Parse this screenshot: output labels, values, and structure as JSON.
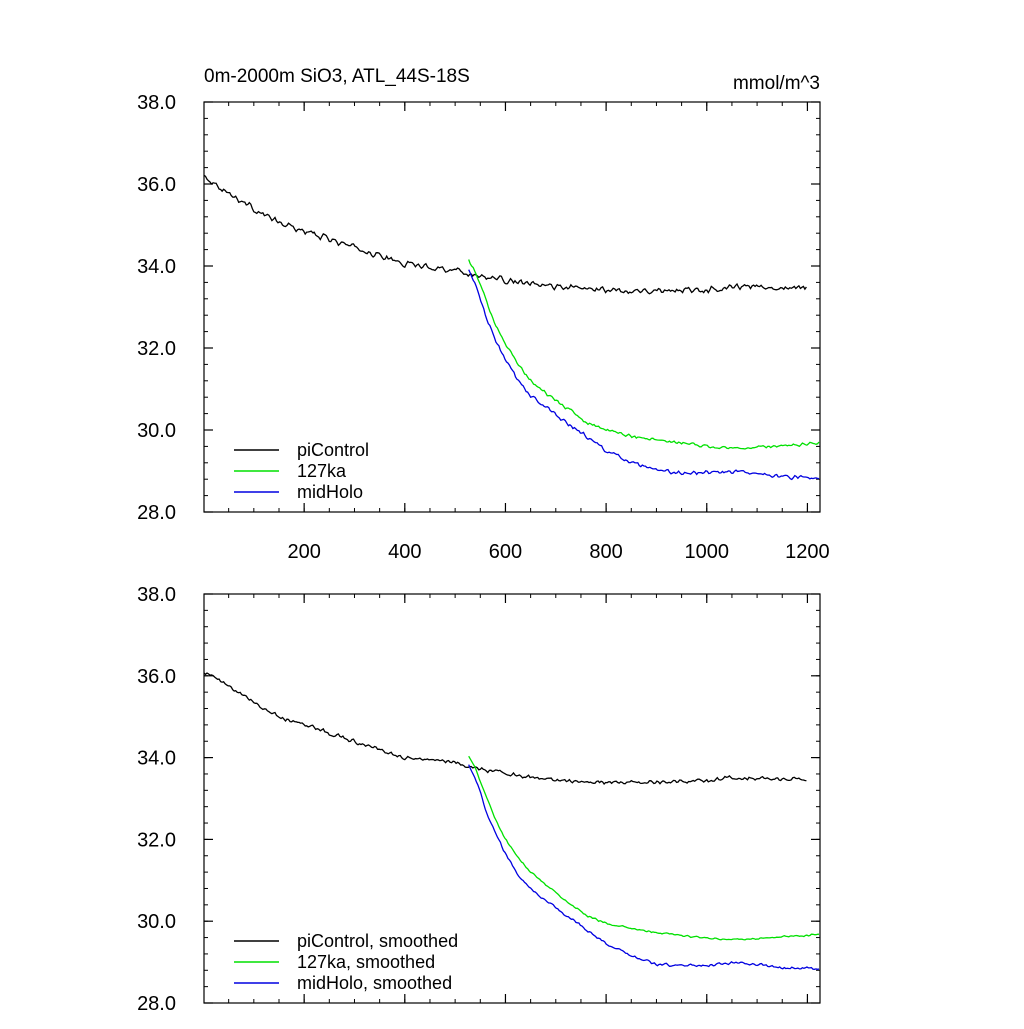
{
  "chart_data": [
    {
      "type": "line",
      "title": "0m-2000m SiO3, ATL_44S-18S",
      "units": "mmol/m^3",
      "xlabel": "",
      "ylabel": "",
      "xlim": [
        1,
        1225
      ],
      "ylim": [
        28.0,
        38.0
      ],
      "x_ticks": [
        200,
        400,
        600,
        800,
        1000,
        1200
      ],
      "x_tick_labels": [
        "200",
        "400",
        "600",
        "800",
        "1000",
        "1200"
      ],
      "y_ticks": [
        28.0,
        30.0,
        32.0,
        34.0,
        36.0,
        38.0
      ],
      "y_tick_labels": [
        "28.0",
        "30.0",
        "32.0",
        "34.0",
        "36.0",
        "38.0"
      ],
      "legend_position": "bottom-left",
      "series": [
        {
          "name": "piControl",
          "color": "#000000",
          "noise": 0.09,
          "points": [
            [
              1,
              36.2
            ],
            [
              30,
              35.95
            ],
            [
              60,
              35.7
            ],
            [
              100,
              35.4
            ],
            [
              150,
              35.05
            ],
            [
              200,
              34.85
            ],
            [
              250,
              34.65
            ],
            [
              300,
              34.45
            ],
            [
              350,
              34.25
            ],
            [
              400,
              34.05
            ],
            [
              450,
              33.98
            ],
            [
              500,
              33.9
            ],
            [
              550,
              33.75
            ],
            [
              600,
              33.65
            ],
            [
              650,
              33.55
            ],
            [
              700,
              33.5
            ],
            [
              750,
              33.45
            ],
            [
              800,
              33.42
            ],
            [
              850,
              33.4
            ],
            [
              900,
              33.4
            ],
            [
              950,
              33.42
            ],
            [
              1000,
              33.42
            ],
            [
              1050,
              33.5
            ],
            [
              1100,
              33.5
            ],
            [
              1150,
              33.48
            ],
            [
              1200,
              33.48
            ]
          ]
        },
        {
          "name": "127ka",
          "color": "#00e000",
          "noise": 0.05,
          "points": [
            [
              527,
              34.15
            ],
            [
              545,
              33.7
            ],
            [
              560,
              33.2
            ],
            [
              580,
              32.6
            ],
            [
              600,
              32.1
            ],
            [
              625,
              31.6
            ],
            [
              650,
              31.2
            ],
            [
              680,
              30.9
            ],
            [
              720,
              30.55
            ],
            [
              760,
              30.2
            ],
            [
              800,
              30.0
            ],
            [
              850,
              29.85
            ],
            [
              900,
              29.75
            ],
            [
              950,
              29.7
            ],
            [
              1000,
              29.6
            ],
            [
              1050,
              29.55
            ],
            [
              1100,
              29.58
            ],
            [
              1150,
              29.62
            ],
            [
              1200,
              29.65
            ],
            [
              1225,
              29.7
            ]
          ]
        },
        {
          "name": "midHolo",
          "color": "#0000e0",
          "noise": 0.06,
          "points": [
            [
              527,
              33.9
            ],
            [
              545,
              33.4
            ],
            [
              560,
              32.8
            ],
            [
              580,
              32.2
            ],
            [
              600,
              31.7
            ],
            [
              625,
              31.2
            ],
            [
              650,
              30.85
            ],
            [
              680,
              30.55
            ],
            [
              720,
              30.2
            ],
            [
              760,
              29.85
            ],
            [
              800,
              29.5
            ],
            [
              850,
              29.2
            ],
            [
              900,
              29.0
            ],
            [
              950,
              28.95
            ],
            [
              1000,
              28.95
            ],
            [
              1050,
              29.0
            ],
            [
              1100,
              28.95
            ],
            [
              1150,
              28.85
            ],
            [
              1200,
              28.85
            ],
            [
              1225,
              28.8
            ]
          ]
        }
      ]
    },
    {
      "type": "line",
      "title": "",
      "units": "",
      "xlabel": "",
      "ylabel": "",
      "xlim": [
        1,
        1225
      ],
      "ylim": [
        28.0,
        38.0
      ],
      "x_ticks": [
        200,
        400,
        600,
        800,
        1000,
        1200
      ],
      "x_tick_labels": [],
      "y_ticks": [
        28.0,
        30.0,
        32.0,
        34.0,
        36.0,
        38.0
      ],
      "y_tick_labels": [
        "28.0",
        "30.0",
        "32.0",
        "34.0",
        "36.0",
        "38.0"
      ],
      "legend_position": "bottom-left",
      "series": [
        {
          "name": "piControl, smoothed",
          "color": "#000000",
          "noise": 0.06,
          "points": [
            [
              1,
              36.1
            ],
            [
              30,
              35.9
            ],
            [
              60,
              35.65
            ],
            [
              100,
              35.35
            ],
            [
              150,
              35.0
            ],
            [
              200,
              34.82
            ],
            [
              250,
              34.6
            ],
            [
              300,
              34.4
            ],
            [
              350,
              34.2
            ],
            [
              400,
              34.0
            ],
            [
              450,
              33.95
            ],
            [
              500,
              33.88
            ],
            [
              550,
              33.72
            ],
            [
              600,
              33.62
            ],
            [
              650,
              33.52
            ],
            [
              700,
              33.45
            ],
            [
              750,
              33.42
            ],
            [
              800,
              33.4
            ],
            [
              850,
              33.4
            ],
            [
              900,
              33.4
            ],
            [
              950,
              33.42
            ],
            [
              1000,
              33.42
            ],
            [
              1050,
              33.52
            ],
            [
              1100,
              33.5
            ],
            [
              1150,
              33.48
            ],
            [
              1200,
              33.48
            ]
          ]
        },
        {
          "name": "127ka, smoothed",
          "color": "#00e000",
          "noise": 0.03,
          "points": [
            [
              527,
              34.05
            ],
            [
              545,
              33.6
            ],
            [
              560,
              33.1
            ],
            [
              580,
              32.5
            ],
            [
              600,
              32.0
            ],
            [
              625,
              31.55
            ],
            [
              650,
              31.2
            ],
            [
              680,
              30.9
            ],
            [
              720,
              30.5
            ],
            [
              760,
              30.15
            ],
            [
              800,
              29.95
            ],
            [
              850,
              29.82
            ],
            [
              900,
              29.72
            ],
            [
              950,
              29.65
            ],
            [
              1000,
              29.58
            ],
            [
              1050,
              29.55
            ],
            [
              1100,
              29.58
            ],
            [
              1150,
              29.62
            ],
            [
              1200,
              29.65
            ],
            [
              1225,
              29.7
            ]
          ]
        },
        {
          "name": "midHolo, smoothed",
          "color": "#0000e0",
          "noise": 0.04,
          "points": [
            [
              527,
              33.85
            ],
            [
              545,
              33.35
            ],
            [
              560,
              32.75
            ],
            [
              580,
              32.15
            ],
            [
              600,
              31.65
            ],
            [
              625,
              31.15
            ],
            [
              650,
              30.8
            ],
            [
              680,
              30.5
            ],
            [
              720,
              30.15
            ],
            [
              760,
              29.8
            ],
            [
              800,
              29.45
            ],
            [
              850,
              29.15
            ],
            [
              900,
              28.95
            ],
            [
              950,
              28.92
            ],
            [
              1000,
              28.92
            ],
            [
              1050,
              28.98
            ],
            [
              1100,
              28.95
            ],
            [
              1150,
              28.85
            ],
            [
              1200,
              28.85
            ],
            [
              1225,
              28.8
            ]
          ]
        }
      ]
    }
  ]
}
